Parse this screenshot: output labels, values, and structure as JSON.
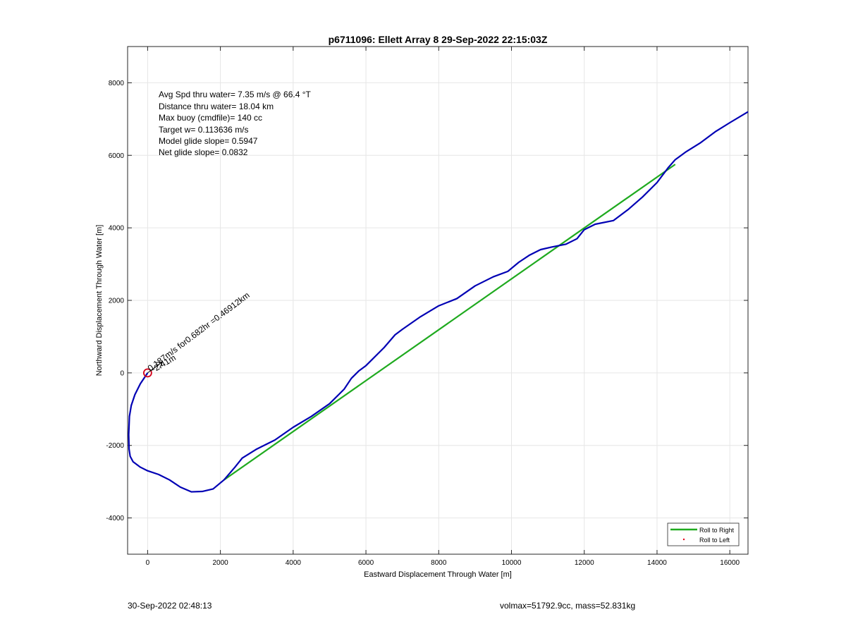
{
  "chart_data": {
    "type": "line",
    "title": "p6711096: Ellett Array 8 29-Sep-2022 22:15:03Z",
    "xlabel": "Eastward Displacement Through Water [m]",
    "ylabel": "Northward Displacement Through Water [m]",
    "xlim": [
      -550,
      16500
    ],
    "ylim": [
      -5000,
      9000
    ],
    "xticks": [
      0,
      2000,
      4000,
      6000,
      8000,
      10000,
      12000,
      14000,
      16000
    ],
    "yticks": [
      -4000,
      -2000,
      0,
      2000,
      4000,
      6000,
      8000
    ],
    "grid": true,
    "legend_position": "bottom-right",
    "colors": {
      "track": "#0000b4",
      "roll_right": "#1faa1f",
      "roll_left": "#e8001c",
      "marker": "#d4001a"
    },
    "annotations": [
      "Avg Spd thru water=  7.35 m/s @  66.4 °T",
      "Distance thru water= 18.04 km",
      "Max buoy (cmdfile)= 140 cc",
      "Target w= 0.113636 m/s",
      "Model glide slope= 0.5947",
      "Net glide slope= 0.0832"
    ],
    "vector_label": "0.187m/s for0.682hr =0.46912km",
    "vector_label_short": "~2.41m",
    "series": [
      {
        "name": "Roll to Right",
        "style": "line",
        "x": [
          2100,
          14500
        ],
        "y": [
          -2950,
          5750
        ]
      },
      {
        "name": "Roll to Left",
        "style": "dot",
        "x": [],
        "y": []
      }
    ],
    "track": {
      "x": [
        0,
        -200,
        -350,
        -450,
        -500,
        -520,
        -510,
        -480,
        -400,
        -200,
        0,
        300,
        600,
        900,
        1200,
        1500,
        1800,
        2100,
        2400,
        2600,
        3000,
        3500,
        4000,
        4500,
        5000,
        5400,
        5600,
        5800,
        6000,
        6200,
        6500,
        6800,
        7000,
        7500,
        8000,
        8500,
        9000,
        9500,
        9900,
        10200,
        10500,
        10800,
        11100,
        11500,
        11800,
        12000,
        12300,
        12800,
        13200,
        13600,
        14000,
        14300,
        14500,
        14800,
        15200,
        15600,
        16000,
        16500
      ],
      "y": [
        0,
        -300,
        -600,
        -900,
        -1200,
        -1700,
        -2100,
        -2300,
        -2450,
        -2600,
        -2700,
        -2800,
        -2950,
        -3150,
        -3280,
        -3270,
        -3200,
        -2950,
        -2600,
        -2350,
        -2100,
        -1850,
        -1500,
        -1200,
        -850,
        -450,
        -150,
        50,
        200,
        400,
        700,
        1050,
        1200,
        1550,
        1850,
        2050,
        2400,
        2650,
        2800,
        3050,
        3250,
        3400,
        3470,
        3550,
        3700,
        3950,
        4100,
        4200,
        4500,
        4850,
        5250,
        5650,
        5880,
        6100,
        6350,
        6650,
        6900,
        7200
      ]
    },
    "start_marker": {
      "x": 0,
      "y": 0
    }
  },
  "footer": {
    "left": "30-Sep-2022 02:48:13",
    "right": "volmax=51792.9cc, mass=52.831kg"
  }
}
